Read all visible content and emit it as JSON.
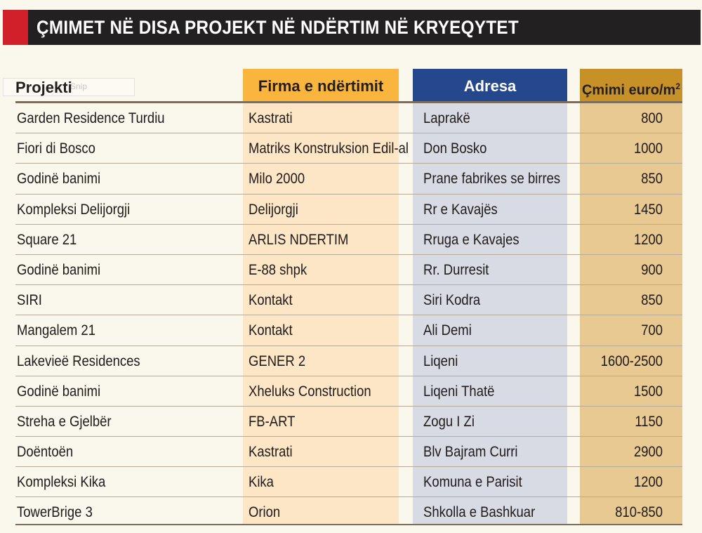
{
  "title": "ÇMIMET NË DISA PROJEKT NË NDËRTIM NË KRYEQYTET",
  "snip_label": "Snip",
  "headers": {
    "project": "Projekti",
    "firm": "Firma e ndërtimit",
    "address": "Adresa",
    "price": "Çmimi euro/m",
    "price_sup": "2"
  },
  "colors": {
    "title_bar": "#222021",
    "title_accent": "#d1202a",
    "firm_header": "#f9b53e",
    "firm_column": "#fde6c6",
    "address_header": "#25478c",
    "address_column": "#d8dbe4",
    "price_header": "#c89128",
    "price_column": "#e7c991"
  },
  "rows": [
    {
      "project": "Garden Residence Turdiu",
      "firm": "Kastrati",
      "address": "Laprakë",
      "price": "800"
    },
    {
      "project": "Fiori di Bosco",
      "firm": "Matriks Konstruksion Edil-al",
      "address": "Don Bosko",
      "price": "1000"
    },
    {
      "project": "Godinë banimi",
      "firm": "Milo 2000",
      "address": "Prane fabrikes se birres",
      "price": "850"
    },
    {
      "project": "Kompleksi Delijorgji",
      "firm": "Delijorgji",
      "address": "Rr e Kavajës",
      "price": "1450"
    },
    {
      "project": "Square 21",
      "firm": "ARLIS NDERTIM",
      "address": "Rruga e Kavajes",
      "price": "1200"
    },
    {
      "project": "Godinë banimi",
      "firm": "E-88 shpk",
      "address": "Rr. Durresit",
      "price": "900"
    },
    {
      "project": "SIRI",
      "firm": "Kontakt",
      "address": "Siri Kodra",
      "price": "850"
    },
    {
      "project": "Mangalem 21",
      "firm": "Kontakt",
      "address": "Ali Demi",
      "price": "700"
    },
    {
      "project": "Lakevieë Residences",
      "firm": "GENER 2",
      "address": "Liqeni",
      "price": "1600-2500"
    },
    {
      "project": "Godinë banimi",
      "firm": "Xheluks Construction",
      "address": "Liqeni Thatë",
      "price": "1500"
    },
    {
      "project": "Streha e Gjelbër",
      "firm": "FB-ART",
      "address": "Zogu I Zi",
      "price": "1150"
    },
    {
      "project": "Doëntoën",
      "firm": "Kastrati",
      "address": "Blv Bajram Curri",
      "price": "2900"
    },
    {
      "project": "Kompleksi Kika",
      "firm": "Kika",
      "address": "Komuna e Parisit",
      "price": "1200"
    },
    {
      "project": "TowerBrige 3",
      "firm": "Orion",
      "address": "Shkolla e Bashkuar",
      "price": "810-850"
    }
  ]
}
